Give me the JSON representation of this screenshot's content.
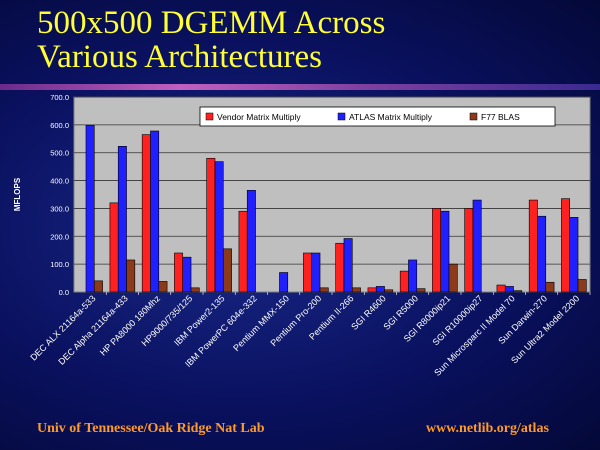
{
  "slide": {
    "title_line1": "500x500 DGEMM Across",
    "title_line2": "Various Architectures",
    "footer_left": "Univ of Tennessee/Oak Ridge Nat Lab",
    "footer_right": "www.netlib.org/atlas"
  },
  "colors": {
    "title": "#ffff33",
    "footer": "#ff9a2a",
    "plot_bg": "#bfbfbf",
    "vendor": "#ff2020",
    "atlas": "#2020ff",
    "f77": "#8b3a1a"
  },
  "chart_data": {
    "type": "bar",
    "title": "",
    "xlabel": "",
    "ylabel": "MFLOPS",
    "ylim": [
      0,
      700
    ],
    "yticks": [
      "0.0",
      "100.0",
      "200.0",
      "300.0",
      "400.0",
      "500.0",
      "600.0",
      "700.0"
    ],
    "grid": true,
    "legend_position": "top-right",
    "categories": [
      "DEC ALX 21164a-533",
      "DEC Alpha 21164a-433",
      "HP PA8000 180Mhz",
      "HP9000/735/125",
      "IBM Power2-135",
      "IBM PowerPC 604e-332",
      "Pentium MMX-150",
      "Pentium Pro-200",
      "Pentium II-266",
      "SGI R4600",
      "SGI R5000",
      "SGI R8000ip21",
      "SGI R10000ip27",
      "Sun Microsparc II Model 70",
      "Sun Darwin-270",
      "Sun Ultra2 Model 2200"
    ],
    "series": [
      {
        "name": "Vendor Matrix Multiply",
        "color": "#ff2020",
        "values": [
          null,
          320,
          565,
          140,
          480,
          290,
          null,
          140,
          175,
          15,
          75,
          300,
          300,
          25,
          330,
          335
        ]
      },
      {
        "name": "ATLAS Matrix Multiply",
        "color": "#2020ff",
        "values": [
          598,
          523,
          578,
          125,
          468,
          365,
          70,
          140,
          192,
          20,
          115,
          290,
          330,
          20,
          272,
          268
        ]
      },
      {
        "name": "F77 BLAS",
        "color": "#8b3a1a",
        "values": [
          40,
          115,
          38,
          15,
          155,
          null,
          null,
          15,
          15,
          8,
          12,
          100,
          null,
          5,
          35,
          45
        ]
      }
    ]
  }
}
